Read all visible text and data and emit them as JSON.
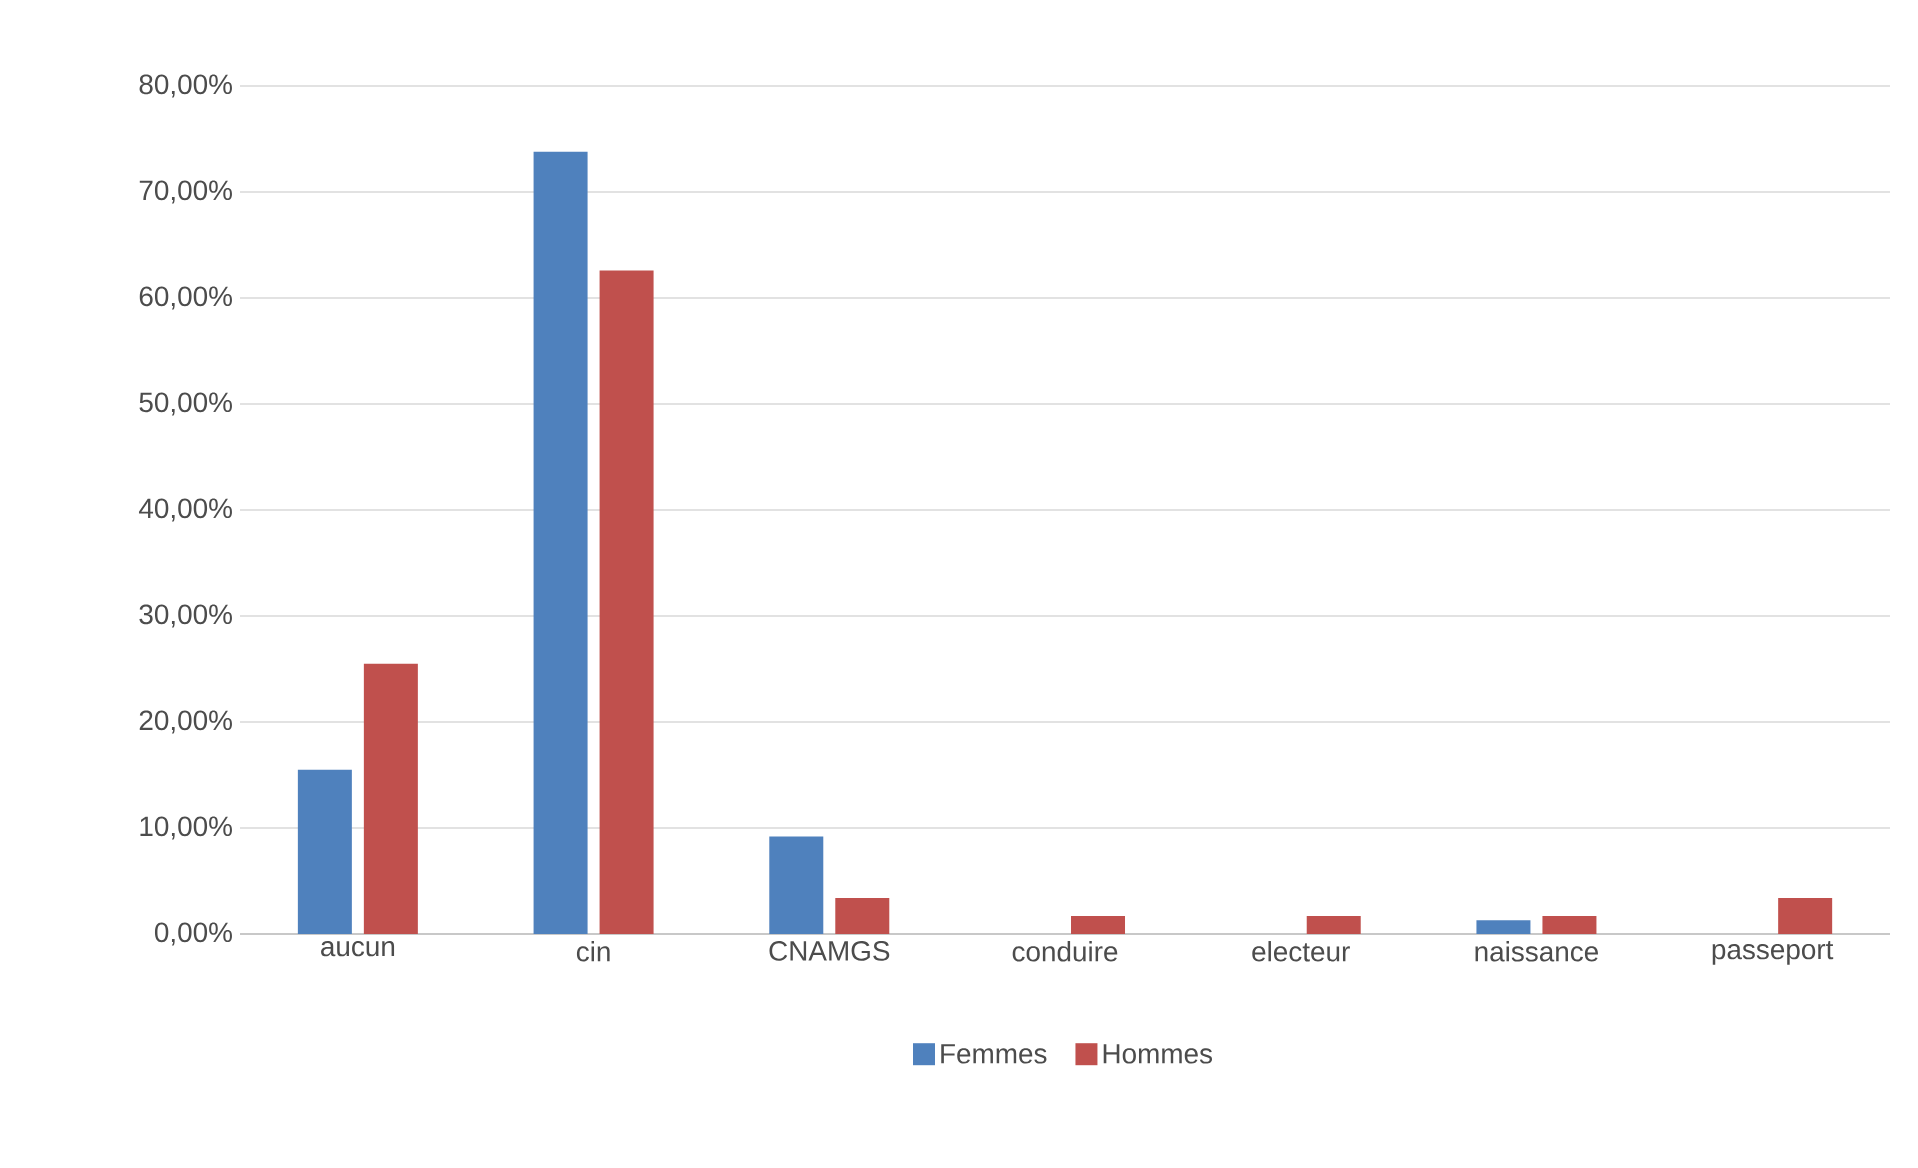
{
  "chart_data": {
    "type": "bar",
    "categories": [
      "aucun",
      "cin",
      "CNAMGS",
      "conduire",
      "electeur",
      "naissance",
      "passeport"
    ],
    "series": [
      {
        "name": "Femmes",
        "color": "#4f81bd",
        "values": [
          15.5,
          73.8,
          9.2,
          0,
          0,
          1.3,
          0
        ]
      },
      {
        "name": "Hommes",
        "color": "#c0504d",
        "values": [
          25.5,
          62.6,
          3.4,
          1.7,
          1.7,
          1.7,
          3.4
        ]
      }
    ],
    "ylim": [
      0,
      80
    ],
    "yticks": [
      {
        "value": 0,
        "label": "0,00%"
      },
      {
        "value": 10,
        "label": "10,00%"
      },
      {
        "value": 20,
        "label": "20,00%"
      },
      {
        "value": 30,
        "label": "30,00%"
      },
      {
        "value": 40,
        "label": "40,00%"
      },
      {
        "value": 50,
        "label": "50,00%"
      },
      {
        "value": 60,
        "label": "60,00%"
      },
      {
        "value": 70,
        "label": "70,00%"
      },
      {
        "value": 80,
        "label": "80,00%"
      }
    ],
    "grid": "y",
    "legend": "bottom"
  }
}
